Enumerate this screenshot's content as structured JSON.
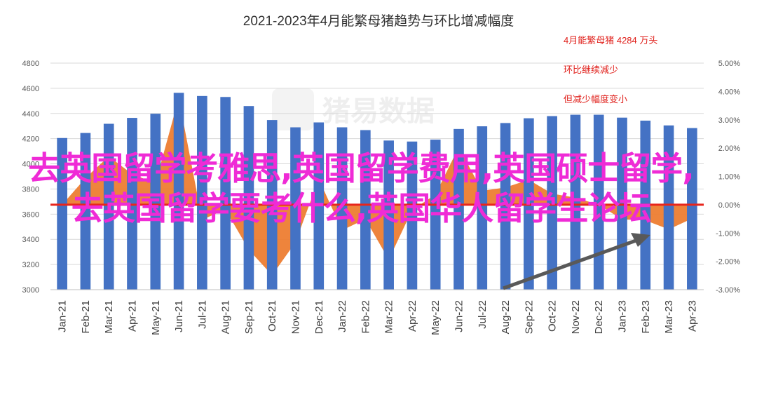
{
  "chart_data": {
    "type": "bar",
    "title": "2021-2023年4月能繁母猪趋势与环比增减幅度",
    "categories": [
      "Jan-21",
      "Feb-21",
      "Mar-21",
      "Apr-21",
      "May-21",
      "Jun-21",
      "Jul-21",
      "Aug-21",
      "Sep-21",
      "Oct-21",
      "Nov-21",
      "Dec-21",
      "Jan-22",
      "Feb-22",
      "Mar-22",
      "Apr-22",
      "May-22",
      "Jun-22",
      "Jul-22",
      "Aug-22",
      "Sep-22",
      "Oct-22",
      "Nov-22",
      "Dec-22",
      "Jan-23",
      "Feb-23",
      "Mar-23",
      "Apr-23"
    ],
    "series": [
      {
        "type": "bar",
        "color": "#4472c4",
        "values": [
          4205,
          4245,
          4318,
          4365,
          4398,
          4564,
          4539,
          4531,
          4459,
          4348,
          4290,
          4329,
          4290,
          4268,
          4185,
          4177,
          4192,
          4277,
          4298,
          4324,
          4362,
          4379,
          4390,
          4390,
          4367,
          4343,
          4305,
          4284
        ],
        "axis": "left"
      },
      {
        "type": "area",
        "color": "#ed7d31",
        "values": [
          0,
          0.94,
          1.71,
          1.08,
          0.76,
          3.77,
          -0.53,
          -0.17,
          -1.59,
          -2.49,
          -1.33,
          0.91,
          -0.9,
          -0.51,
          -1.94,
          -0.19,
          0.36,
          2.03,
          0.49,
          0.61,
          0.88,
          0.39,
          0.25,
          0.0,
          -0.52,
          -0.55,
          -0.87,
          -0.49
        ],
        "axis": "right"
      }
    ],
    "ylim": [
      3000,
      4800
    ],
    "yticks": [
      "3000",
      "3200",
      "3400",
      "3600",
      "3800",
      "4000",
      "4200",
      "4400",
      "4600",
      "4800"
    ],
    "y2lim": [
      -3,
      5
    ],
    "y2ticks": [
      "-3.00%",
      "-2.00%",
      "-1.00%",
      "0.00%",
      "1.00%",
      "2.00%",
      "3.00%",
      "4.00%",
      "5.00%"
    ],
    "annotations": [
      "4月能繁母猪 4284 万头",
      "环比继续减少",
      "但减少幅度变小"
    ],
    "watermark": "猪易数据",
    "colors": {
      "bar": "#4472c4",
      "area": "#ed7d31",
      "zero_line": "#e8251c",
      "arrow": "#595959",
      "annotation": "#e0201b"
    }
  },
  "overlay_text": "去英国留学考雅思,英国留学费用,英国硕士留学,去英国留学要考什么,英国华人留学生论坛",
  "overlay_color": "#ef2bd6"
}
